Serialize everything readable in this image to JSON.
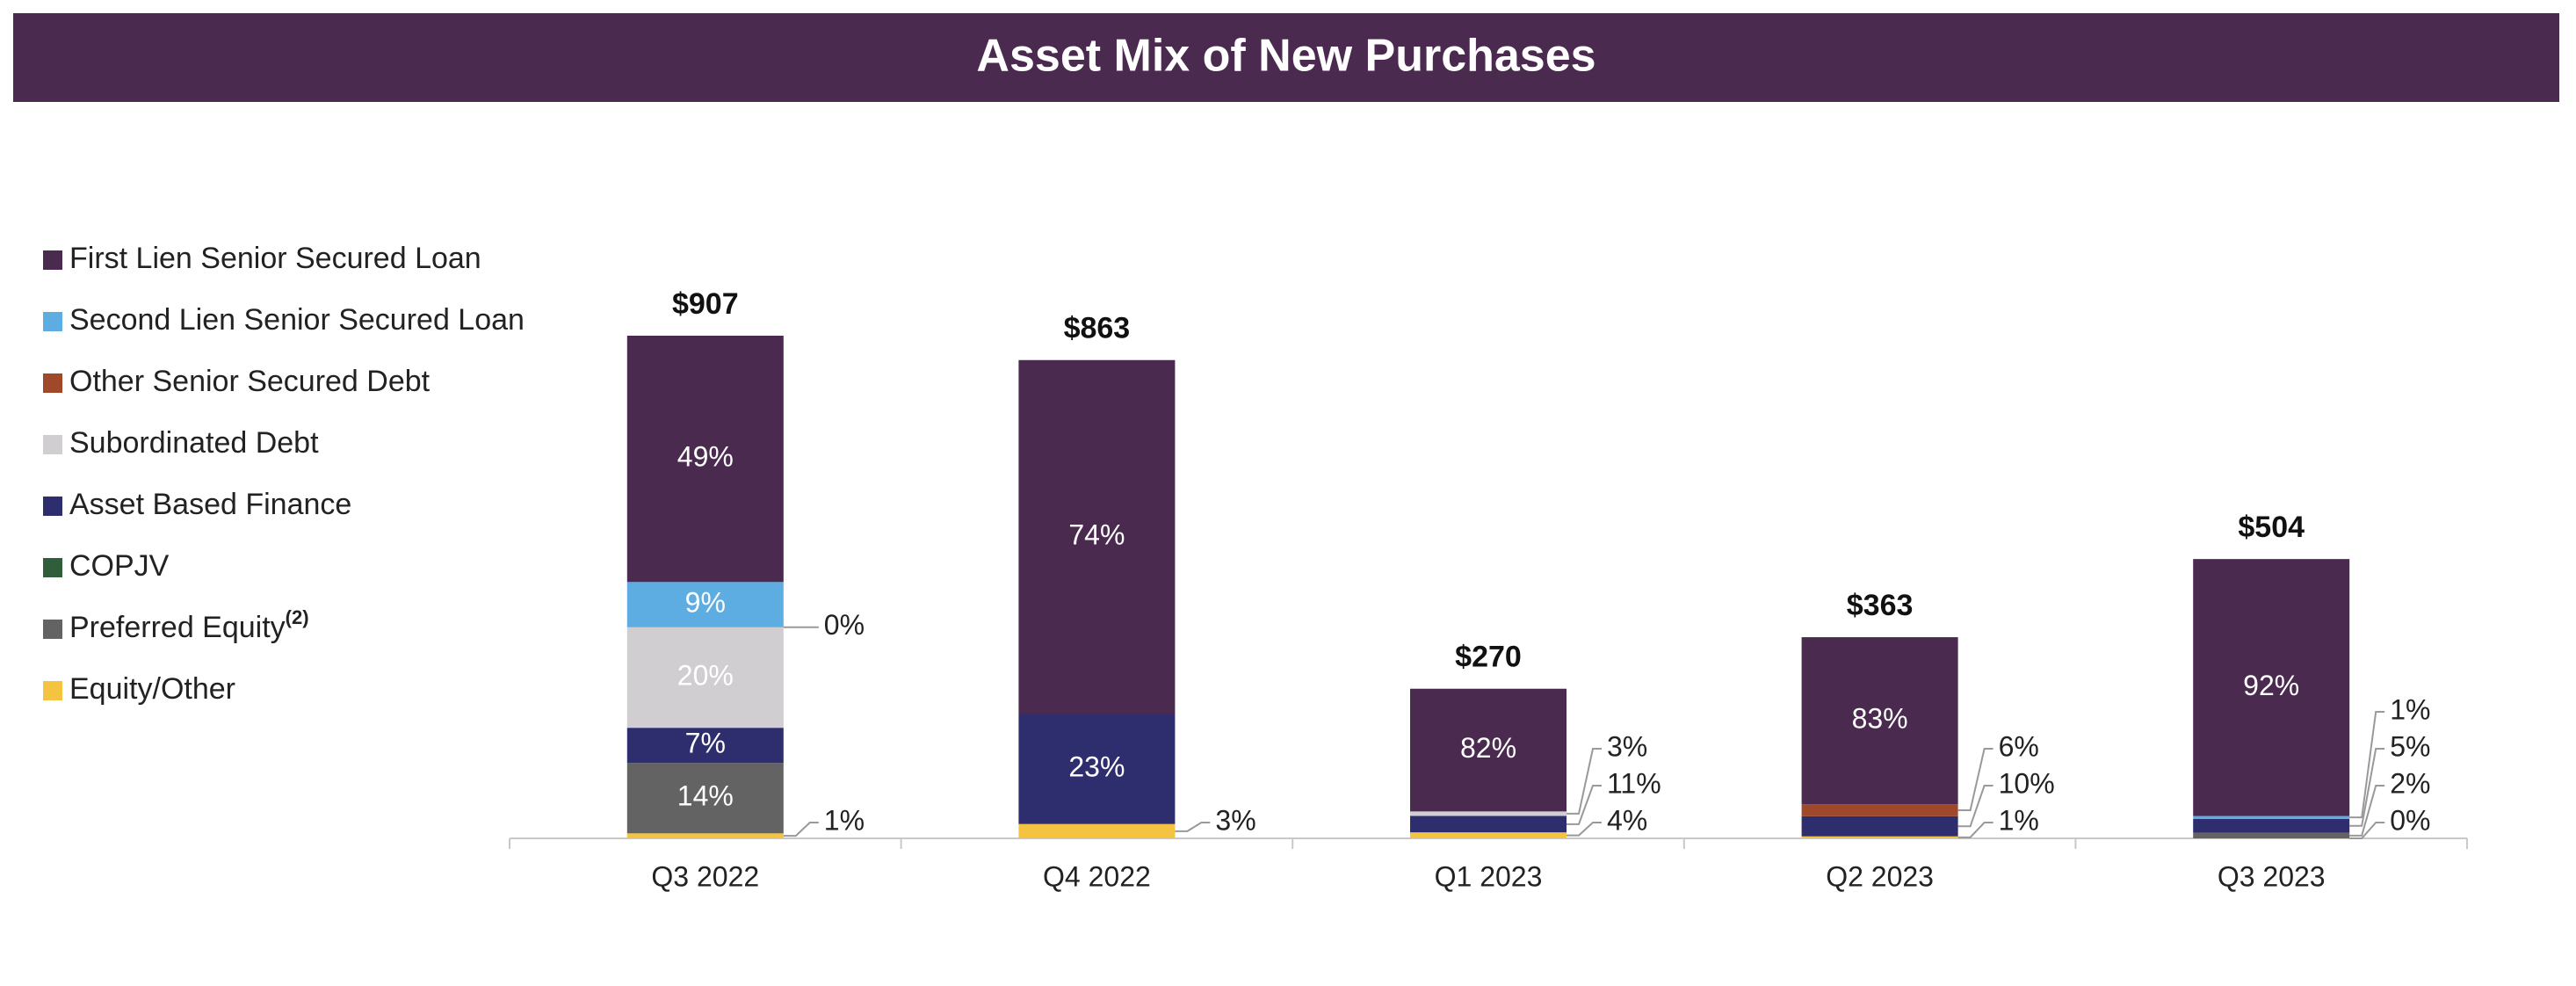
{
  "chart_data": {
    "type": "stacked_bar",
    "title": "Asset Mix of New Purchases",
    "categories": [
      "Q3 2022",
      "Q4 2022",
      "Q1 2023",
      "Q2 2023",
      "Q3 2023"
    ],
    "totals": [
      907,
      863,
      270,
      363,
      504
    ],
    "totals_labels": [
      "$907",
      "$863",
      "$270",
      "$363",
      "$504"
    ],
    "series": [
      {
        "name": "First Lien Senior Secured Loan",
        "color": "#4b2a4f",
        "values": [
          49,
          74,
          82,
          83,
          92
        ],
        "value_labels": [
          "49%",
          "74%",
          "82%",
          "83%",
          "92%"
        ]
      },
      {
        "name": "Second Lien Senior Secured Loan",
        "color": "#5dade2",
        "values": [
          9,
          null,
          null,
          null,
          1
        ],
        "value_labels": [
          "9%",
          null,
          null,
          null,
          "1%"
        ]
      },
      {
        "name": "Other Senior Secured Debt",
        "color": "#a0482a",
        "values": [
          0,
          null,
          null,
          6,
          null
        ],
        "value_labels": [
          "0%",
          null,
          null,
          "6%",
          null
        ]
      },
      {
        "name": "Subordinated Debt",
        "color": "#d0ced0",
        "values": [
          20,
          null,
          3,
          null,
          null
        ],
        "value_labels": [
          "20%",
          null,
          "3%",
          null,
          null
        ]
      },
      {
        "name": "Asset Based Finance",
        "color": "#2e2e6e",
        "values": [
          7,
          23,
          11,
          10,
          5
        ],
        "value_labels": [
          "7%",
          "23%",
          "11%",
          "10%",
          "5%"
        ]
      },
      {
        "name": "COPJV",
        "color": "#2f5f3a",
        "values": [
          null,
          null,
          null,
          null,
          null
        ],
        "value_labels": [
          null,
          null,
          null,
          null,
          null
        ]
      },
      {
        "name": "Preferred Equity",
        "note": "(2)",
        "color": "#636363",
        "values": [
          14,
          null,
          null,
          null,
          2
        ],
        "value_labels": [
          "14%",
          null,
          null,
          null,
          "2%"
        ]
      },
      {
        "name": "Equity/Other",
        "color": "#f5c342",
        "values": [
          1,
          3,
          4,
          1,
          0
        ],
        "value_labels": [
          "1%",
          "3%",
          "4%",
          "1%",
          "0%"
        ]
      }
    ]
  }
}
